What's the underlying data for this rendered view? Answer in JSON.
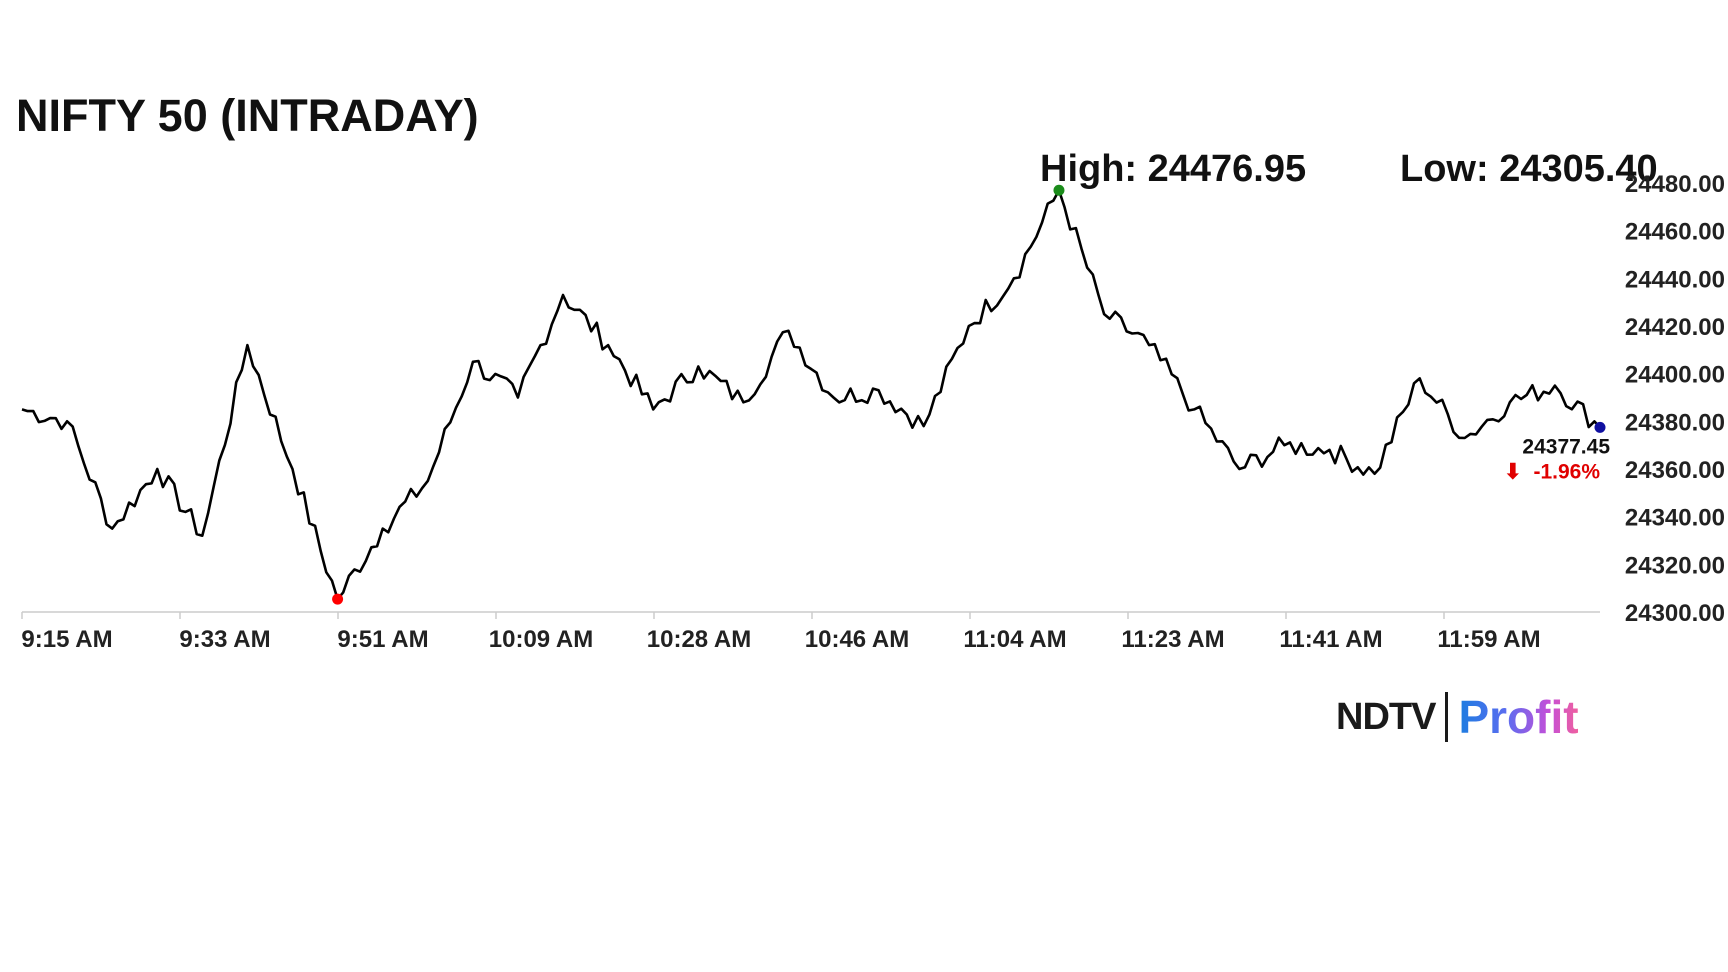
{
  "header": {
    "title": "NIFTY 50 (INTRADAY)",
    "high_label": "High: 24476.95",
    "low_label": "Low: 24305.40"
  },
  "logo": {
    "brand": "NDTV",
    "product": "Profit"
  },
  "colors": {
    "line": "#000000",
    "high_marker": "#1a8c1a",
    "low_marker": "#ff0000",
    "last_marker": "#1010a0",
    "change_negative": "#e00000",
    "axis": "#cccccc"
  },
  "chart_data": {
    "type": "line",
    "series": [
      {
        "x": [
          "9:15 AM",
          "9:20 AM",
          "9:25 AM",
          "9:30 AM",
          "9:35 AM",
          "9:40 AM",
          "9:45 AM",
          "9:50 AM",
          "9:55 AM",
          "10:00 AM",
          "10:05 AM",
          "10:10 AM",
          "10:15 AM",
          "10:20 AM",
          "10:25 AM",
          "10:30 AM",
          "10:35 AM",
          "10:40 AM",
          "10:45 AM",
          "10:50 AM",
          "10:55 AM",
          "11:00 AM",
          "11:05 AM",
          "11:10 AM",
          "11:15 AM",
          "11:20 AM",
          "11:25 AM",
          "11:30 AM",
          "11:35 AM",
          "11:40 AM",
          "11:45 AM",
          "11:50 AM",
          "11:55 AM",
          "12:00 PM",
          "12:05 PM",
          "12:10 PM"
        ],
        "values": [
          24385,
          24380,
          24335,
          24360,
          24332,
          24412,
          24360,
          24305.4,
          24335,
          24355,
          24405,
          24390,
          24433,
          24412,
          24385,
          24403,
          24388,
          24418,
          24390,
          24393,
          24378,
          24420,
          24440,
          24476.95,
          24425,
          24412,
          24385,
          24360,
          24370,
          24368,
          24358,
          24398,
          24373,
          24388,
          24395,
          24377.45
        ]
      }
    ],
    "x_ticks": [
      "9:15 AM",
      "9:33 AM",
      "9:51 AM",
      "10:09 AM",
      "10:28 AM",
      "10:46 AM",
      "11:04 AM",
      "11:23 AM",
      "11:41 AM",
      "11:59 AM"
    ],
    "y_ticks": [
      "24300.00",
      "24320.00",
      "24340.00",
      "24360.00",
      "24380.00",
      "24400.00",
      "24420.00",
      "24440.00",
      "24460.00",
      "24480.00"
    ],
    "ylim": [
      24300,
      24480
    ],
    "high": 24476.95,
    "low": 24305.4,
    "last_value": "24377.45",
    "change": "-1.96%",
    "change_arrow": "⬇",
    "grid": false
  }
}
